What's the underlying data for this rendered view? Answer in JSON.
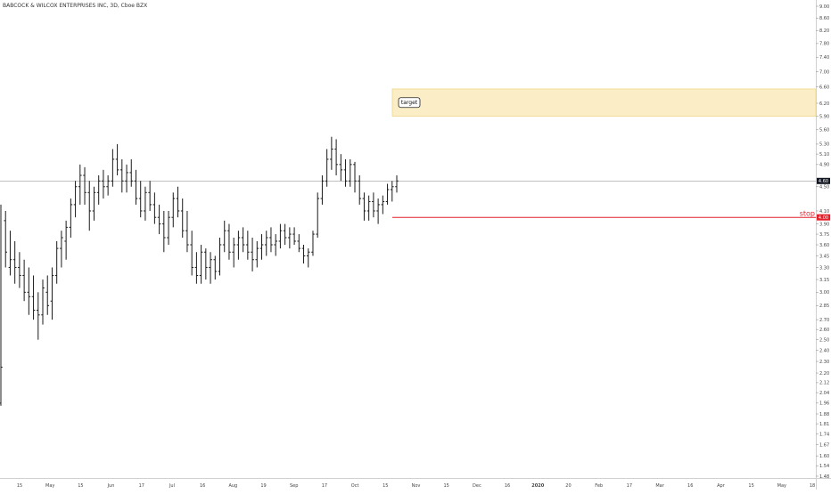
{
  "chart_data": {
    "type": "bar",
    "style": "ohlc",
    "title": "BABCOCK & WILCOX ENTERPRISES INC, 3D, Cboe BZX",
    "price_axis": {
      "scale": "log",
      "range": [
        1.48,
        9.0
      ],
      "ticks": [
        "9.00",
        "8.60",
        "8.20",
        "7.80",
        "7.40",
        "7.00",
        "6.60",
        "6.20",
        "5.90",
        "5.60",
        "5.30",
        "5.10",
        "4.90",
        "4.50",
        "4.10",
        "3.90",
        "3.75",
        "3.60",
        "3.45",
        "3.30",
        "3.15",
        "3.00",
        "2.85",
        "2.70",
        "2.60",
        "2.50",
        "2.40",
        "2.30",
        "2.20",
        "2.12",
        "2.04",
        "1.96",
        "1.88",
        "1.81",
        "1.74",
        "1.67",
        "1.60",
        "1.54",
        "1.48"
      ]
    },
    "time_axis": {
      "ticks": [
        "15",
        "May",
        "15",
        "Jun",
        "17",
        "Jul",
        "16",
        "Aug",
        "19",
        "Sep",
        "17",
        "Oct",
        "15",
        "Nov",
        "15",
        "Dec",
        "16",
        "2020",
        "20",
        "Feb",
        "17",
        "Mar",
        "16",
        "Apr",
        "15",
        "May",
        "18"
      ],
      "major": [
        "2020"
      ]
    },
    "bars_ohlc": [
      [
        1.96,
        4.2,
        1.94,
        2.25
      ],
      [
        3.95,
        4.1,
        3.3,
        3.5
      ],
      [
        3.3,
        3.8,
        3.2,
        3.4
      ],
      [
        3.4,
        3.65,
        3.1,
        3.3
      ],
      [
        3.3,
        3.5,
        3.05,
        3.2
      ],
      [
        3.2,
        3.4,
        2.9,
        3.0
      ],
      [
        3.0,
        3.3,
        2.75,
        2.95
      ],
      [
        2.95,
        3.2,
        2.7,
        2.8
      ],
      [
        2.8,
        3.0,
        2.5,
        2.75
      ],
      [
        2.75,
        3.15,
        2.65,
        3.05
      ],
      [
        3.0,
        3.2,
        2.75,
        2.85
      ],
      [
        2.9,
        3.3,
        2.7,
        3.2
      ],
      [
        3.2,
        3.65,
        3.1,
        3.55
      ],
      [
        3.55,
        3.8,
        3.3,
        3.7
      ],
      [
        3.65,
        3.95,
        3.4,
        3.85
      ],
      [
        3.85,
        4.3,
        3.7,
        4.2
      ],
      [
        4.2,
        4.6,
        4.0,
        4.5
      ],
      [
        4.5,
        4.9,
        4.2,
        4.7
      ],
      [
        4.7,
        4.85,
        4.2,
        4.4
      ],
      [
        4.4,
        4.6,
        3.8,
        4.1
      ],
      [
        4.1,
        4.5,
        3.95,
        4.4
      ],
      [
        4.4,
        4.7,
        4.2,
        4.6
      ],
      [
        4.6,
        4.8,
        4.3,
        4.5
      ],
      [
        4.5,
        4.7,
        4.35,
        4.6
      ],
      [
        4.6,
        5.2,
        4.5,
        5.0
      ],
      [
        5.0,
        5.3,
        4.7,
        4.8
      ],
      [
        4.8,
        5.0,
        4.4,
        4.6
      ],
      [
        4.6,
        4.9,
        4.4,
        4.75
      ],
      [
        4.75,
        5.0,
        4.5,
        4.6
      ],
      [
        4.6,
        4.8,
        4.2,
        4.3
      ],
      [
        4.3,
        4.6,
        4.0,
        4.1
      ],
      [
        4.1,
        4.5,
        3.95,
        4.4
      ],
      [
        4.4,
        4.6,
        4.1,
        4.2
      ],
      [
        4.2,
        4.4,
        3.9,
        4.0
      ],
      [
        4.0,
        4.2,
        3.75,
        3.9
      ],
      [
        3.9,
        4.1,
        3.5,
        3.7
      ],
      [
        3.7,
        4.1,
        3.6,
        4.0
      ],
      [
        4.0,
        4.4,
        3.85,
        4.3
      ],
      [
        4.3,
        4.5,
        4.0,
        4.1
      ],
      [
        4.1,
        4.3,
        3.7,
        3.8
      ],
      [
        3.8,
        4.1,
        3.5,
        3.6
      ],
      [
        3.6,
        3.8,
        3.2,
        3.3
      ],
      [
        3.3,
        3.5,
        3.1,
        3.2
      ],
      [
        3.2,
        3.6,
        3.1,
        3.5
      ],
      [
        3.5,
        3.55,
        3.15,
        3.3
      ],
      [
        3.3,
        3.5,
        3.1,
        3.4
      ],
      [
        3.4,
        3.45,
        3.15,
        3.25
      ],
      [
        3.25,
        3.7,
        3.2,
        3.6
      ],
      [
        3.6,
        3.95,
        3.5,
        3.8
      ],
      [
        3.8,
        3.9,
        3.4,
        3.5
      ],
      [
        3.5,
        3.7,
        3.3,
        3.6
      ],
      [
        3.6,
        3.8,
        3.4,
        3.7
      ],
      [
        3.7,
        3.85,
        3.5,
        3.6
      ],
      [
        3.6,
        3.8,
        3.4,
        3.5
      ],
      [
        3.5,
        3.7,
        3.25,
        3.4
      ],
      [
        3.4,
        3.65,
        3.3,
        3.55
      ],
      [
        3.55,
        3.75,
        3.4,
        3.6
      ],
      [
        3.6,
        3.8,
        3.45,
        3.7
      ],
      [
        3.7,
        3.85,
        3.5,
        3.6
      ],
      [
        3.6,
        3.75,
        3.45,
        3.65
      ],
      [
        3.65,
        3.9,
        3.55,
        3.8
      ],
      [
        3.8,
        3.9,
        3.6,
        3.7
      ],
      [
        3.7,
        3.85,
        3.55,
        3.75
      ],
      [
        3.75,
        3.85,
        3.6,
        3.65
      ],
      [
        3.65,
        3.75,
        3.5,
        3.55
      ],
      [
        3.55,
        3.6,
        3.35,
        3.45
      ],
      [
        3.45,
        3.55,
        3.3,
        3.5
      ],
      [
        3.5,
        3.8,
        3.45,
        3.75
      ],
      [
        3.75,
        4.4,
        3.7,
        4.3
      ],
      [
        4.3,
        4.7,
        4.2,
        4.6
      ],
      [
        4.6,
        5.2,
        4.5,
        5.0
      ],
      [
        5.0,
        5.45,
        4.8,
        5.2
      ],
      [
        5.2,
        5.4,
        4.7,
        4.9
      ],
      [
        4.9,
        5.1,
        4.6,
        4.8
      ],
      [
        4.8,
        5.0,
        4.5,
        4.6
      ],
      [
        4.6,
        5.0,
        4.5,
        4.9
      ],
      [
        4.9,
        4.95,
        4.4,
        4.6
      ],
      [
        4.6,
        4.7,
        4.2,
        4.3
      ],
      [
        4.3,
        4.4,
        3.95,
        4.1
      ],
      [
        4.1,
        4.35,
        3.95,
        4.25
      ],
      [
        4.25,
        4.4,
        4.0,
        4.1
      ],
      [
        4.1,
        4.3,
        3.9,
        4.2
      ],
      [
        4.2,
        4.35,
        4.05,
        4.25
      ],
      [
        4.25,
        4.55,
        4.2,
        4.45
      ],
      [
        4.45,
        4.6,
        4.25,
        4.5
      ],
      [
        4.5,
        4.7,
        4.4,
        4.6
      ]
    ],
    "current_price": "4.60",
    "stop_price": "4.00",
    "target_zone": {
      "low": 5.9,
      "high": 6.55
    },
    "annotations": {
      "target": "target",
      "stop": "stop"
    },
    "colors": {
      "bars": "#1a1a1a",
      "stop_line": "#e3202a",
      "target_fill": "#fbeec6",
      "target_border": "#f0d58a",
      "price_line": "#9b9b9b"
    }
  }
}
